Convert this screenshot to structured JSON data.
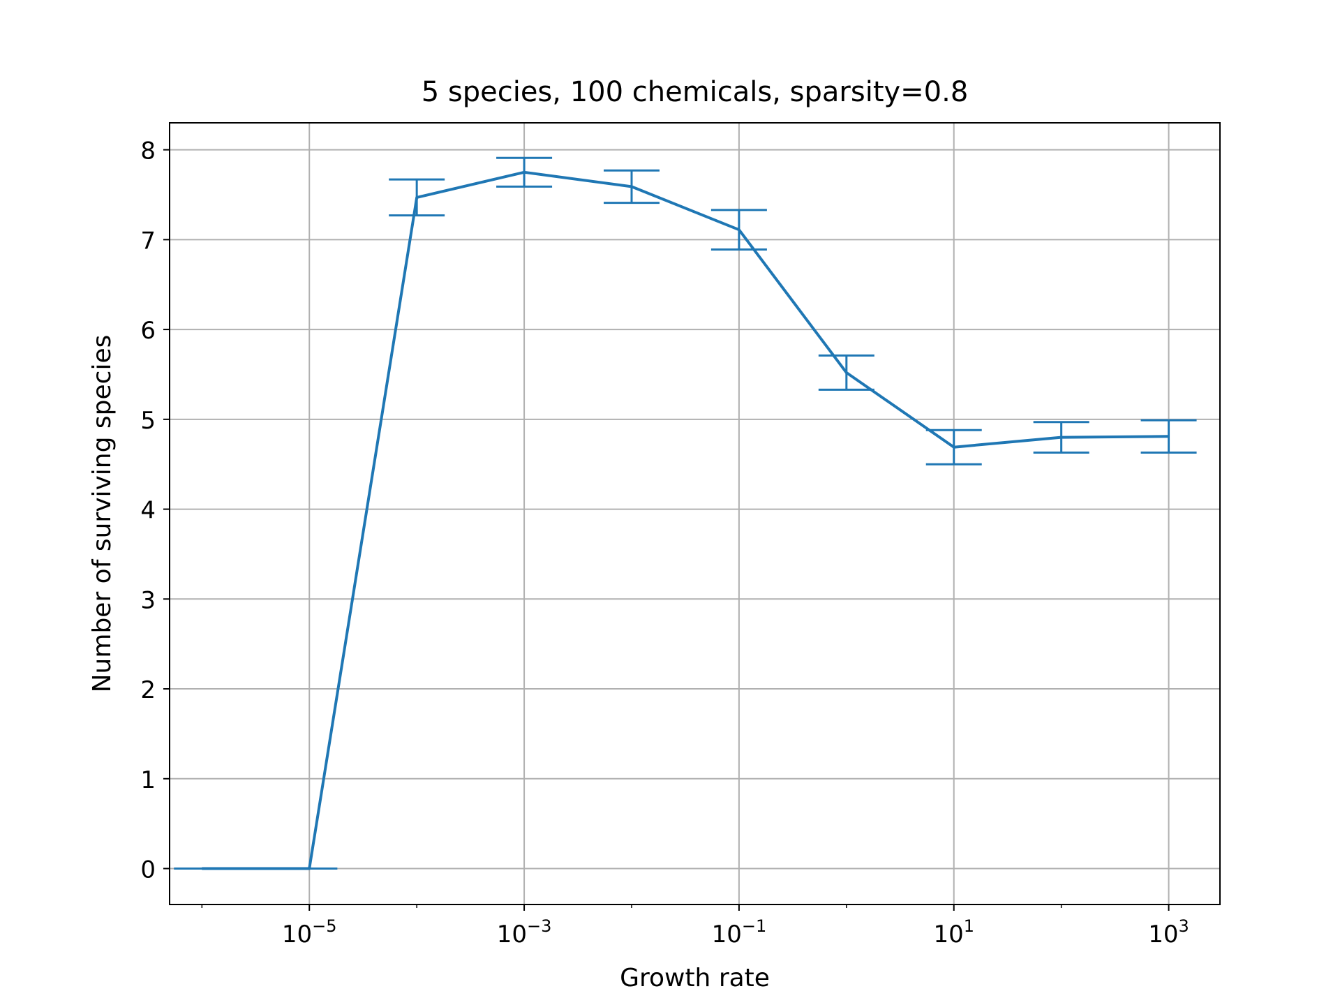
{
  "chart_data": {
    "type": "line",
    "title": "5 species, 100 chemicals, sparsity=0.8",
    "xlabel": "Growth rate",
    "ylabel": "Number of surviving species",
    "xscale": "log",
    "xlim": [
      5e-07,
      3000
    ],
    "ylim": [
      -0.4,
      8.3
    ],
    "grid": true,
    "line_color": "#1f77b4",
    "x_ticks": [
      {
        "value": 1e-05,
        "base": "10",
        "exp": "−5"
      },
      {
        "value": 0.001,
        "base": "10",
        "exp": "−3"
      },
      {
        "value": 0.1,
        "base": "10",
        "exp": "−1"
      },
      {
        "value": 10,
        "base": "10",
        "exp": "1"
      },
      {
        "value": 1000,
        "base": "10",
        "exp": "3"
      }
    ],
    "y_ticks": [
      "0",
      "1",
      "2",
      "3",
      "4",
      "5",
      "6",
      "7",
      "8"
    ],
    "series": [
      {
        "x": [
          1e-06,
          1e-05,
          0.0001,
          0.001,
          0.01,
          0.1,
          1,
          10,
          100,
          1000
        ],
        "y": [
          0,
          0,
          7.47,
          7.75,
          7.59,
          7.11,
          5.52,
          4.69,
          4.8,
          4.81
        ],
        "yerr": [
          0,
          0,
          0.2,
          0.16,
          0.18,
          0.22,
          0.19,
          0.19,
          0.17,
          0.18
        ]
      }
    ]
  }
}
